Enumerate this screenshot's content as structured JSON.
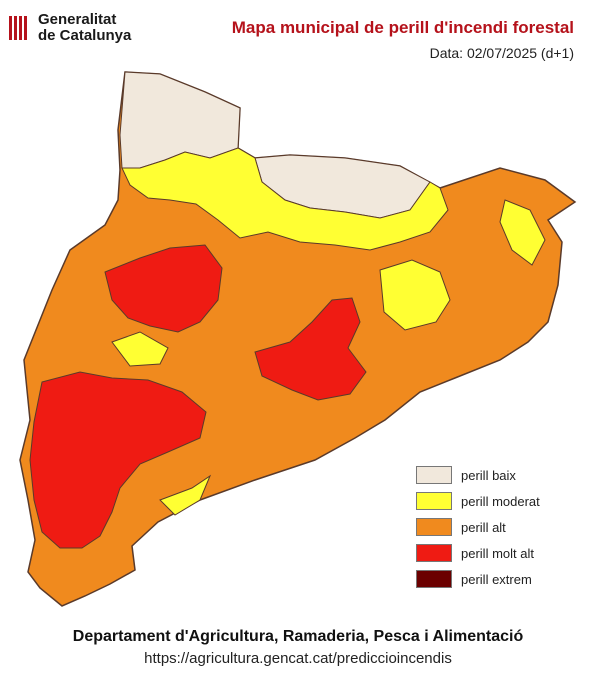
{
  "header": {
    "org_line1": "Generalitat",
    "org_line2": "de Catalunya",
    "title": "Mapa municipal de perill d'incendi forestal",
    "date": "Data: 02/07/2025 (d+1)"
  },
  "legend": [
    {
      "label": "perill baix",
      "color": "#f1e8dc"
    },
    {
      "label": "perill moderat",
      "color": "#ffff33"
    },
    {
      "label": "perill alt",
      "color": "#f08a1e"
    },
    {
      "label": "perill molt alt",
      "color": "#ef1b13"
    },
    {
      "label": "perill extrem",
      "color": "#6b0000"
    }
  ],
  "colors": {
    "title": "#b5121b",
    "border": "#5a3a2a"
  },
  "footer": {
    "org": "Departament d'Agricultura, Ramaderia, Pesca i Alimentació",
    "url": "https://agricultura.gencat.cat/prediccioincendis"
  }
}
